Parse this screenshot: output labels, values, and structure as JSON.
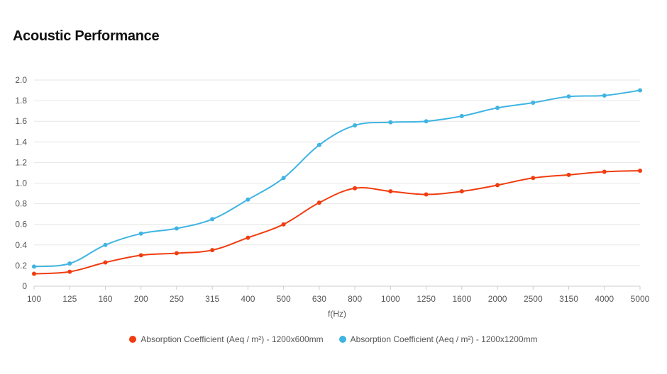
{
  "page": {
    "title": "Acoustic Performance"
  },
  "chart_data": {
    "type": "line",
    "title": "Acoustic Performance",
    "xlabel": "f(Hz)",
    "ylabel": "",
    "categories": [
      "100",
      "125",
      "160",
      "200",
      "250",
      "315",
      "400",
      "500",
      "630",
      "800",
      "1000",
      "1250",
      "1600",
      "2000",
      "2500",
      "3150",
      "4000",
      "5000"
    ],
    "ylim": [
      0,
      2.0
    ],
    "yticks": [
      "0",
      "0.2",
      "0.4",
      "0.6",
      "0.8",
      "1.0",
      "1.2",
      "1.4",
      "1.6",
      "1.8",
      "2.0"
    ],
    "grid": true,
    "legend_position": "bottom",
    "series": [
      {
        "name": "Absorption Coefficient (Aeq / m²) - 1200x600mm",
        "color": "#f03c0f",
        "values": [
          0.12,
          0.14,
          0.23,
          0.3,
          0.32,
          0.35,
          0.47,
          0.6,
          0.81,
          0.95,
          0.92,
          0.89,
          0.92,
          0.98,
          1.05,
          1.08,
          1.11,
          1.12
        ]
      },
      {
        "name": "Absorption Coefficient (Aeq / m²) - 1200x1200mm",
        "color": "#3fb4e3",
        "values": [
          0.19,
          0.22,
          0.4,
          0.51,
          0.56,
          0.65,
          0.84,
          1.05,
          1.37,
          1.56,
          1.59,
          1.6,
          1.65,
          1.73,
          1.78,
          1.84,
          1.85,
          1.9
        ]
      }
    ]
  }
}
